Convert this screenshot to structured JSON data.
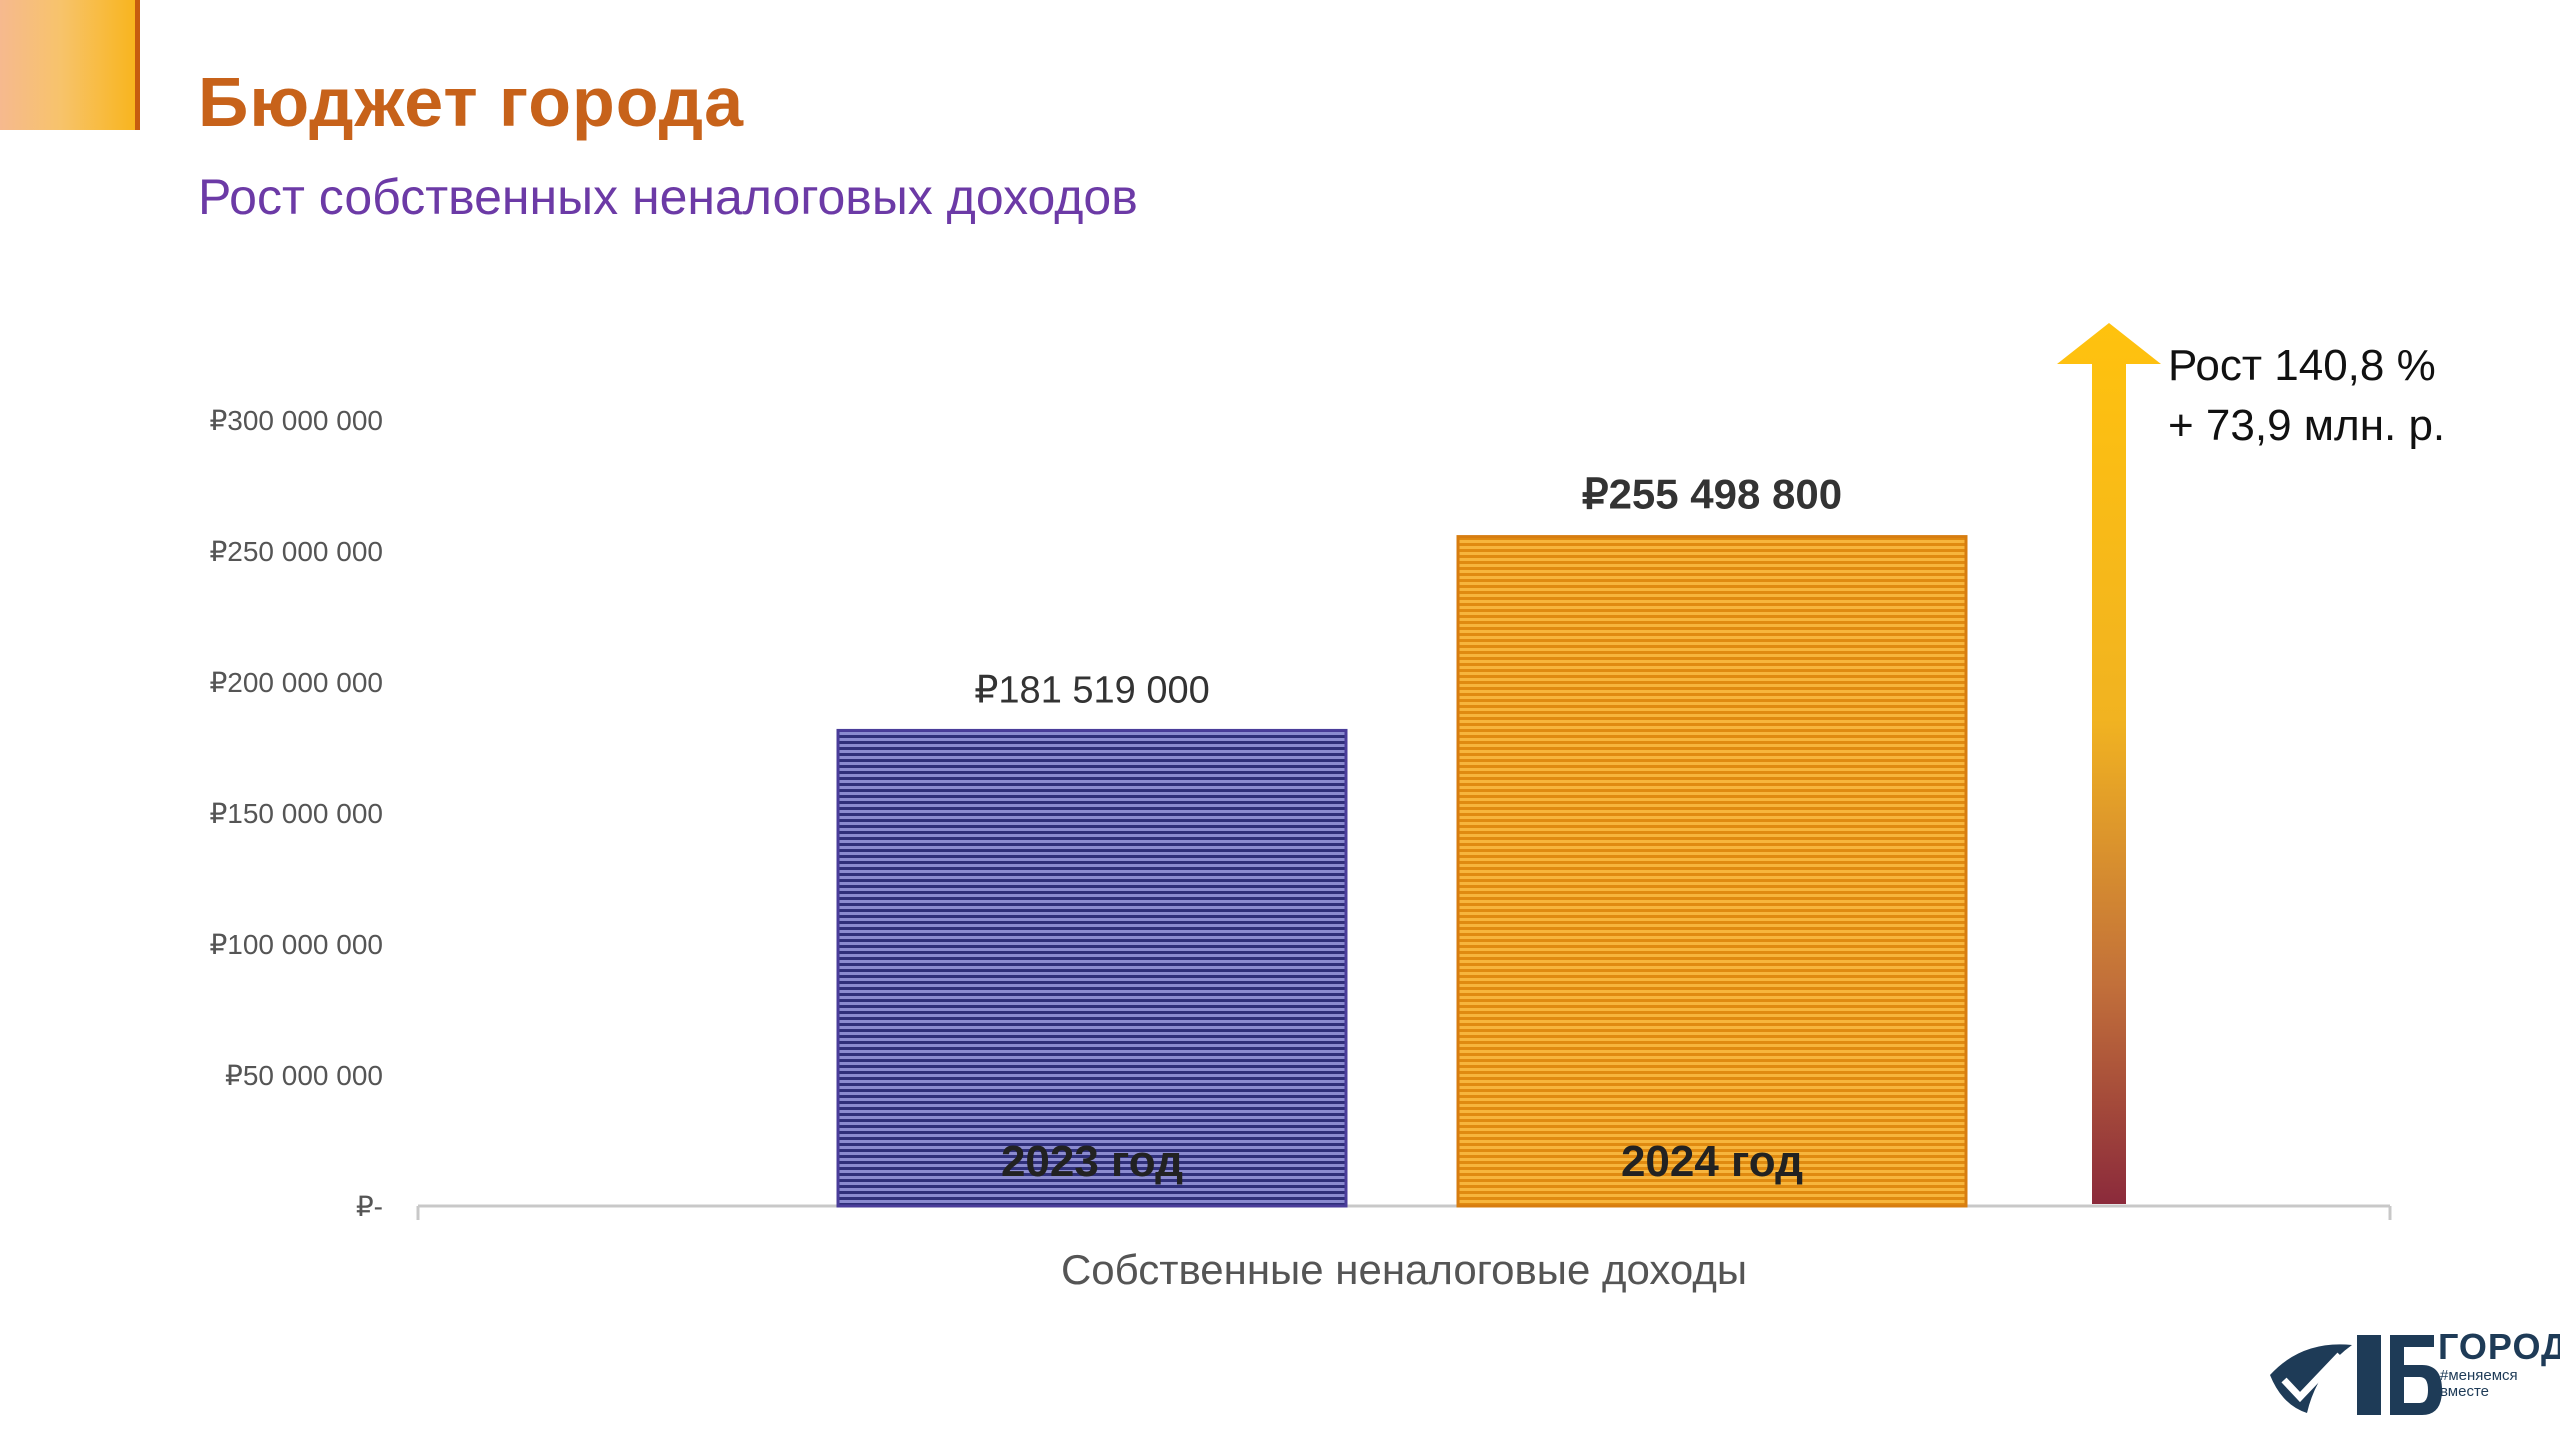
{
  "header": {
    "title": "Бюджет города",
    "subtitle": "Рост собственных неналоговых доходов"
  },
  "colors": {
    "title": "#c7621a",
    "subtitle": "#6c3aa6",
    "bar_2023": "#5a5aa8",
    "bar_2024": "#f0a020",
    "arrow_top": "#ffc20e",
    "arrow_bottom": "#8b2a3b"
  },
  "growth": {
    "line1": "Рост 140,8 %",
    "line2": "+ 73,9 млн. р."
  },
  "logo": {
    "word": "ГОРОД",
    "tagline": "#меняемся вместе"
  },
  "chart_data": {
    "type": "bar",
    "title": "",
    "xlabel": "Собственные неналоговые доходы",
    "ylabel": "",
    "ylim": [
      0,
      300000000
    ],
    "yticks": [
      0,
      50000000,
      100000000,
      150000000,
      200000000,
      250000000,
      300000000
    ],
    "ytick_labels": [
      "₽-",
      "₽50 000 000",
      "₽100 000 000",
      "₽150 000 000",
      "₽200 000 000",
      "₽250 000 000",
      "₽300 000 000"
    ],
    "grid": false,
    "categories": [
      "Собственные неналоговые доходы"
    ],
    "series": [
      {
        "name": "2023 год",
        "values": [
          181519000
        ],
        "data_label": "₽181 519 000",
        "color": "#5a5aa8"
      },
      {
        "name": "2024 год",
        "values": [
          255498800
        ],
        "data_label": "₽255 498 800",
        "color": "#f0a020"
      }
    ]
  }
}
